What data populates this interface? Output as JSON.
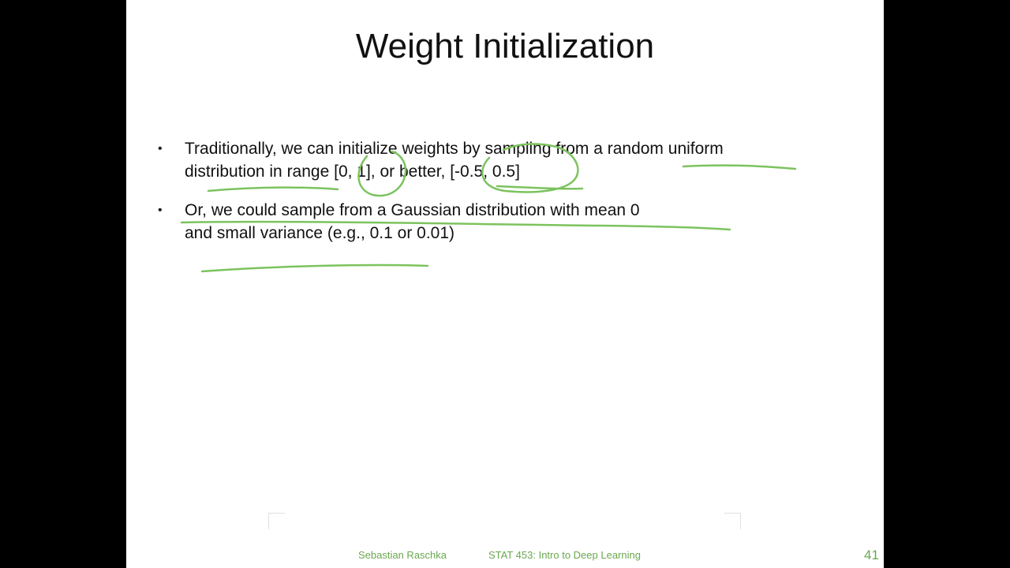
{
  "slide": {
    "title": "Weight Initialization",
    "bullets": [
      {
        "lines": [
          "Traditionally, we can initialize weights by sampling from a random uniform",
          "distribution in range [0, 1], or better, [-0.5, 0.5]"
        ]
      },
      {
        "lines": [
          "Or, we could sample from a Gaussian distribution with mean 0",
          "and small variance (e.g., 0.1 or 0.01)"
        ]
      }
    ],
    "bullet_symbol": "•"
  },
  "footer": {
    "author": "Sebastian Raschka",
    "course": "STAT 453: Intro to Deep Learning",
    "page_number": "41"
  },
  "colors": {
    "background": "#000000",
    "slide": "#ffffff",
    "text": "#111111",
    "annotation_ink": "#7cc35e",
    "footer": "#6aa84f"
  }
}
